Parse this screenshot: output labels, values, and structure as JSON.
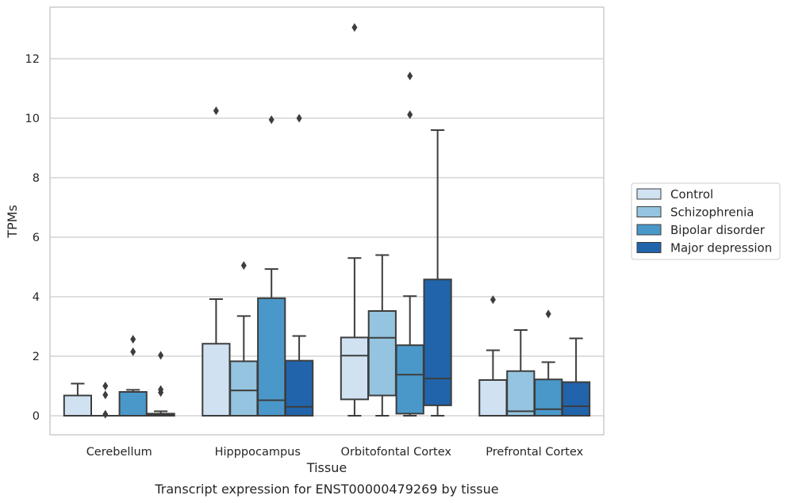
{
  "chart_data": {
    "type": "box",
    "title": "",
    "caption": "Transcript expression for ENST00000479269 by tissue",
    "xlabel": "Tissue",
    "ylabel": "TPMs",
    "ylim": [
      -0.65,
      13.8
    ],
    "yticks": [
      0,
      2,
      4,
      6,
      8,
      10,
      12
    ],
    "grid": "horizontal",
    "legend_position": "right",
    "categories": [
      "Cerebellum",
      "Hipppocampus",
      "Orbitofontal Cortex",
      "Prefrontal Cortex"
    ],
    "series": [
      {
        "name": "Control",
        "color": "#d0e1f2",
        "boxes": [
          {
            "whislo": 0,
            "q1": 0,
            "med": 0,
            "q3": 0.68,
            "whishi": 1.08,
            "fliers": []
          },
          {
            "whislo": 0,
            "q1": 0,
            "med": 0,
            "q3": 2.42,
            "whishi": 3.92,
            "fliers": [
              10.25
            ]
          },
          {
            "whislo": 0,
            "q1": 0.55,
            "med": 2.02,
            "q3": 2.63,
            "whishi": 5.3,
            "fliers": [
              13.05
            ]
          },
          {
            "whislo": 0,
            "q1": 0,
            "med": 0,
            "q3": 1.2,
            "whishi": 2.2,
            "fliers": [
              3.9
            ]
          }
        ]
      },
      {
        "name": "Schizophrenia",
        "color": "#94c4df",
        "boxes": [
          {
            "whislo": 0,
            "q1": 0,
            "med": 0,
            "q3": 0,
            "whishi": 0,
            "fliers": [
              0.05,
              0.7,
              1.0
            ]
          },
          {
            "whislo": 0,
            "q1": 0,
            "med": 0.85,
            "q3": 1.83,
            "whishi": 3.35,
            "fliers": [
              5.05
            ]
          },
          {
            "whislo": 0,
            "q1": 0.68,
            "med": 2.62,
            "q3": 3.52,
            "whishi": 5.4,
            "fliers": []
          },
          {
            "whislo": 0,
            "q1": 0,
            "med": 0.15,
            "q3": 1.5,
            "whishi": 2.88,
            "fliers": []
          }
        ]
      },
      {
        "name": "Bipolar disorder",
        "color": "#4a98c9",
        "boxes": [
          {
            "whislo": 0,
            "q1": 0,
            "med": 0,
            "q3": 0.8,
            "whishi": 0.87,
            "fliers": [
              2.15,
              2.57
            ]
          },
          {
            "whislo": 0,
            "q1": 0,
            "med": 0.52,
            "q3": 3.95,
            "whishi": 4.93,
            "fliers": [
              9.95
            ]
          },
          {
            "whislo": 0,
            "q1": 0.07,
            "med": 1.38,
            "q3": 2.37,
            "whishi": 4.02,
            "fliers": [
              10.12,
              11.42
            ]
          },
          {
            "whislo": 0,
            "q1": 0,
            "med": 0.22,
            "q3": 1.22,
            "whishi": 1.8,
            "fliers": [
              3.42
            ]
          }
        ]
      },
      {
        "name": "Major depression",
        "color": "#2164ab",
        "boxes": [
          {
            "whislo": 0,
            "q1": 0,
            "med": 0.03,
            "q3": 0.07,
            "whishi": 0.15,
            "fliers": [
              0.78,
              0.88,
              2.03
            ]
          },
          {
            "whislo": 0,
            "q1": 0,
            "med": 0.3,
            "q3": 1.85,
            "whishi": 2.68,
            "fliers": [
              10.0
            ]
          },
          {
            "whislo": 0,
            "q1": 0.35,
            "med": 1.25,
            "q3": 4.58,
            "whishi": 9.6,
            "fliers": []
          },
          {
            "whislo": 0,
            "q1": 0,
            "med": 0.32,
            "q3": 1.13,
            "whishi": 2.6,
            "fliers": []
          }
        ]
      }
    ]
  }
}
